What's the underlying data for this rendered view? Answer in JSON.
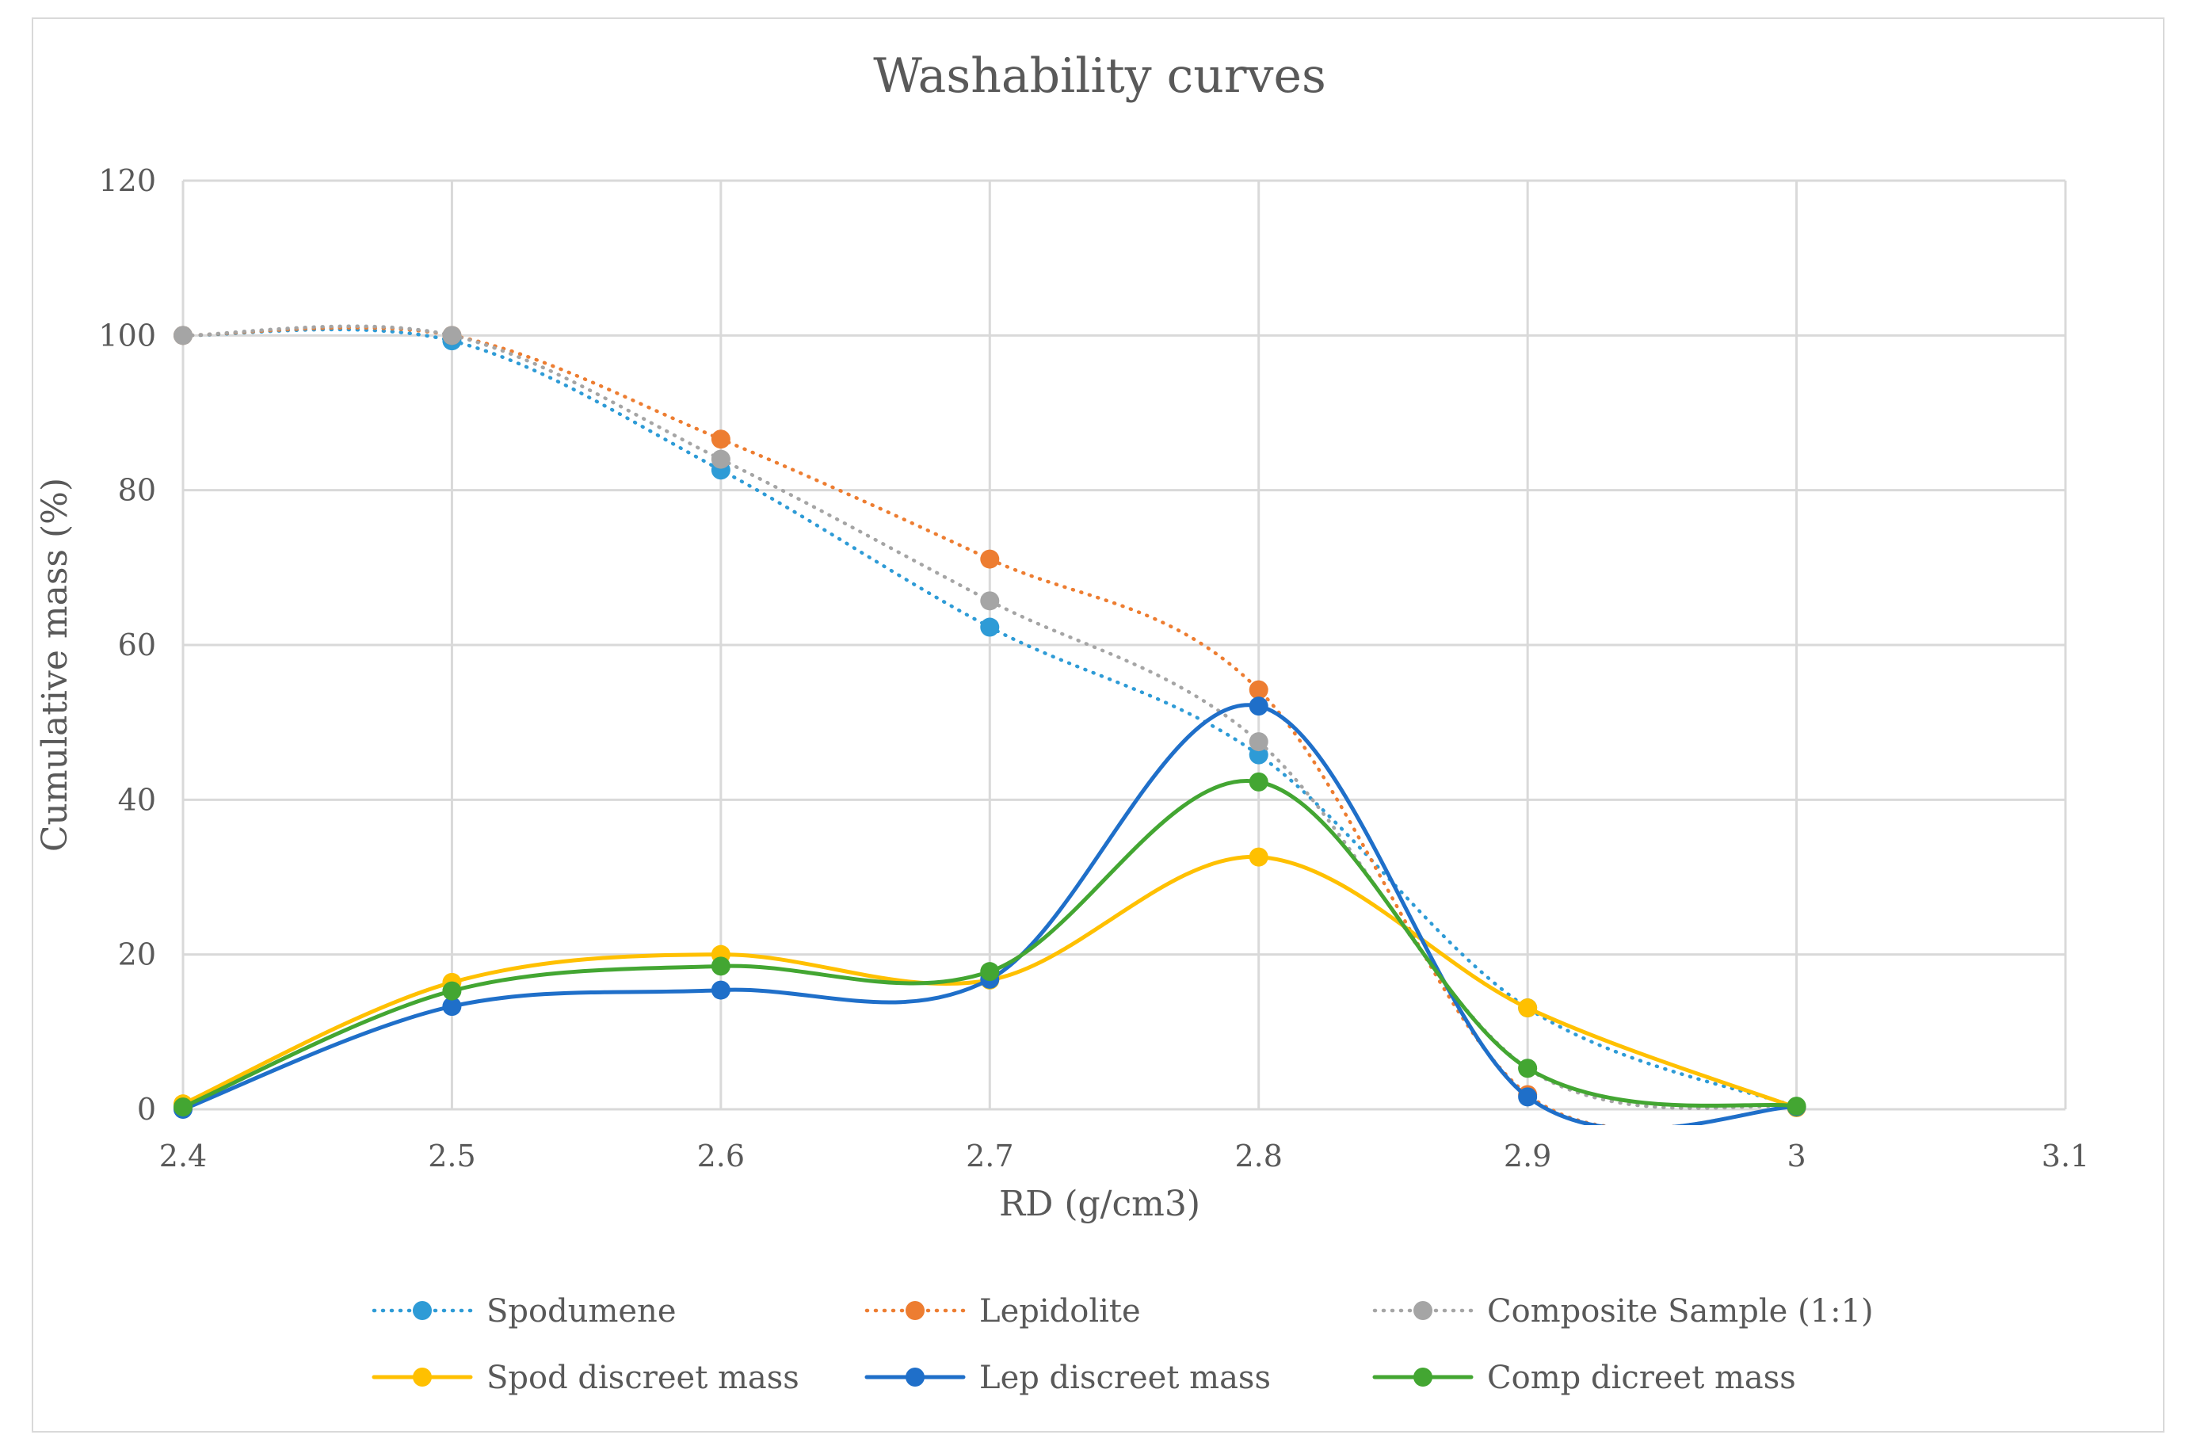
{
  "chart_data": {
    "type": "line",
    "title": "Washability curves",
    "xlabel": "RD (g/cm3)",
    "ylabel": "Cumulative mass (%)",
    "xlim": [
      2.4,
      3.1
    ],
    "ylim": [
      0,
      120
    ],
    "x_ticks": [
      "2.4",
      "2.5",
      "2.6",
      "2.7",
      "2.8",
      "2.9",
      "3",
      "3.1"
    ],
    "y_ticks": [
      "0",
      "20",
      "40",
      "60",
      "80",
      "100",
      "120"
    ],
    "grid": true,
    "legend_position": "bottom",
    "series": [
      {
        "name": "Spodumene",
        "color": "#2e9bd6",
        "style": "dotted",
        "x": [
          2.4,
          2.5,
          2.6,
          2.7,
          2.8,
          2.9,
          3.0
        ],
        "y": [
          100,
          99.3,
          82.6,
          62.3,
          45.8,
          13.1,
          0.3
        ]
      },
      {
        "name": "Lepidolite",
        "color": "#ed7d31",
        "style": "dotted",
        "x": [
          2.4,
          2.5,
          2.6,
          2.7,
          2.8,
          2.9,
          3.0
        ],
        "y": [
          100,
          100,
          86.6,
          71.1,
          54.2,
          1.9,
          0.3
        ]
      },
      {
        "name": "Composite Sample (1:1)",
        "color": "#a5a5a5",
        "style": "dotted",
        "x": [
          2.4,
          2.5,
          2.6,
          2.7,
          2.8,
          2.9,
          3.0
        ],
        "y": [
          100,
          100,
          84,
          65.7,
          47.5,
          5.3,
          0.3
        ]
      },
      {
        "name": "Spod discreet mass",
        "color": "#ffc000",
        "style": "solid",
        "x": [
          2.4,
          2.5,
          2.6,
          2.7,
          2.8,
          2.9,
          3.0
        ],
        "y": [
          0.7,
          16.4,
          20,
          16.7,
          32.6,
          13.1,
          0.2
        ]
      },
      {
        "name": "Lep discreet mass",
        "color": "#1f6fc9",
        "style": "solid",
        "x": [
          2.4,
          2.5,
          2.6,
          2.7,
          2.8,
          2.9,
          3.0
        ],
        "y": [
          0,
          13.3,
          15.4,
          16.8,
          52.1,
          1.6,
          0.3
        ]
      },
      {
        "name": "Comp dicreet mass",
        "color": "#43a632",
        "style": "solid",
        "x": [
          2.4,
          2.5,
          2.6,
          2.7,
          2.8,
          2.9,
          3.0
        ],
        "y": [
          0.3,
          15.3,
          18.5,
          17.8,
          42.3,
          5.3,
          0.4
        ]
      }
    ]
  }
}
